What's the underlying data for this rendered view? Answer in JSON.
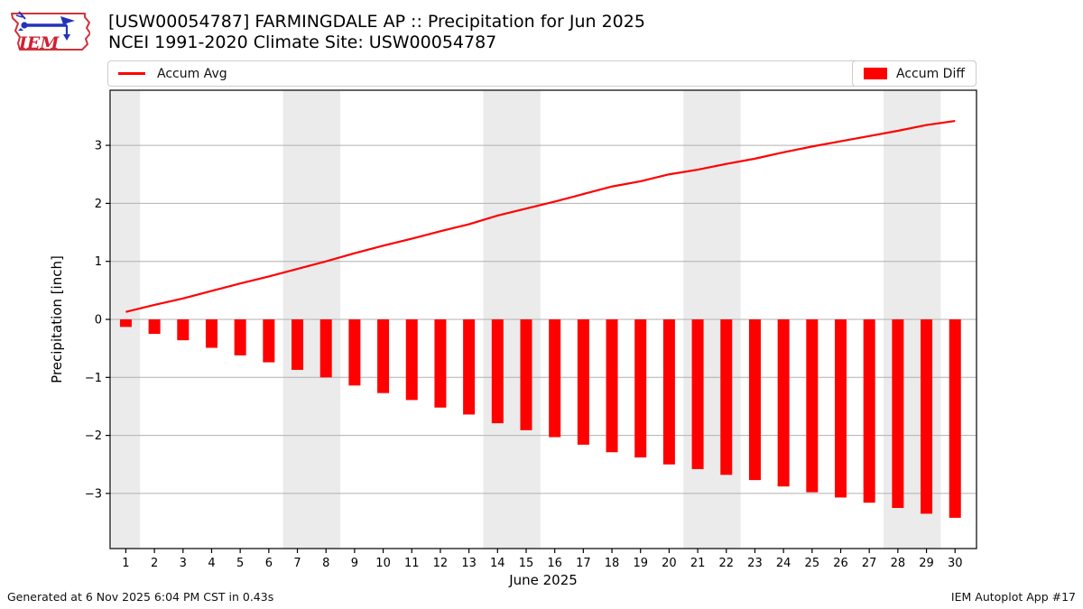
{
  "header": {
    "title_line1": "[USW00054787] FARMINGDALE AP :: Precipitation for Jun 2025",
    "title_line2": "NCEI 1991-2020 Climate Site: USW00054787",
    "logo_text": "IEM"
  },
  "legend": {
    "avg_label": "Accum Avg",
    "diff_label": "Accum Diff",
    "line_color": "#ff0000",
    "bar_color": "#ff0000"
  },
  "footer": {
    "generated": "Generated at 6 Nov 2025 6:04 PM CST in 0.43s",
    "app": "IEM Autoplot App #17"
  },
  "chart_data": {
    "type": "bar",
    "title": "[USW00054787] FARMINGDALE AP :: Precipitation for Jun 2025",
    "subtitle": "NCEI 1991-2020 Climate Site: USW00054787",
    "xlabel": "June 2025",
    "ylabel": "Precipitation [inch]",
    "xlim": [
      0.45,
      30.75
    ],
    "ylim": [
      -3.95,
      3.95
    ],
    "grid": "horizontal-only",
    "grid_color": "#b0b0b0",
    "shade_color": "#ebebeb",
    "weekend_shading": [
      [
        0.5,
        1.5
      ],
      [
        6.5,
        8.5
      ],
      [
        13.5,
        15.5
      ],
      [
        20.5,
        22.5
      ],
      [
        27.5,
        29.5
      ]
    ],
    "x": [
      1,
      2,
      3,
      4,
      5,
      6,
      7,
      8,
      9,
      10,
      11,
      12,
      13,
      14,
      15,
      16,
      17,
      18,
      19,
      20,
      21,
      22,
      23,
      24,
      25,
      26,
      27,
      28,
      29,
      30
    ],
    "xticks": [
      1,
      2,
      3,
      4,
      5,
      6,
      7,
      8,
      9,
      10,
      11,
      12,
      13,
      14,
      15,
      16,
      17,
      18,
      19,
      20,
      21,
      22,
      23,
      24,
      25,
      26,
      27,
      28,
      29,
      30
    ],
    "yticks": [
      -3,
      -2,
      -1,
      0,
      1,
      2,
      3
    ],
    "yticklabels": [
      "−3",
      "−2",
      "−1",
      "0",
      "1",
      "2",
      "3"
    ],
    "series": [
      {
        "name": "Accum Avg",
        "type": "line",
        "color": "#ff0000",
        "values": [
          0.13,
          0.25,
          0.36,
          0.49,
          0.62,
          0.74,
          0.87,
          1.0,
          1.14,
          1.27,
          1.39,
          1.52,
          1.64,
          1.79,
          1.91,
          2.03,
          2.16,
          2.29,
          2.38,
          2.5,
          2.58,
          2.68,
          2.77,
          2.88,
          2.98,
          3.07,
          3.16,
          3.25,
          3.35,
          3.42
        ]
      },
      {
        "name": "Accum Diff",
        "type": "bar",
        "color": "#ff0000",
        "values": [
          -0.13,
          -0.25,
          -0.36,
          -0.49,
          -0.62,
          -0.74,
          -0.87,
          -1.0,
          -1.14,
          -1.27,
          -1.39,
          -1.52,
          -1.64,
          -1.79,
          -1.91,
          -2.03,
          -2.16,
          -2.29,
          -2.38,
          -2.5,
          -2.58,
          -2.68,
          -2.77,
          -2.88,
          -2.98,
          -3.07,
          -3.16,
          -3.25,
          -3.35,
          -3.42
        ]
      }
    ],
    "legend_position": "top, line legend left, bar legend right"
  }
}
